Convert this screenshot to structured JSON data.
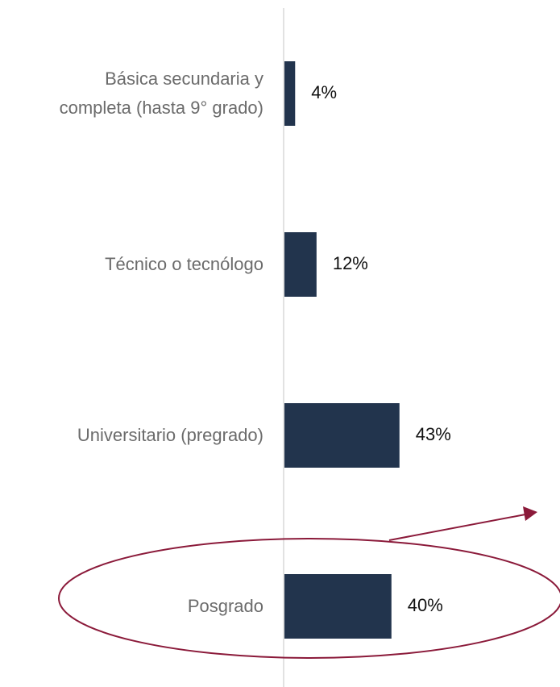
{
  "chart_data": {
    "type": "bar",
    "orientation": "horizontal",
    "categories": [
      "Básica secundaria y completa (hasta 9° grado)",
      "Técnico o tecnólogo",
      "Universitario (pregrado)",
      "Posgrado"
    ],
    "values": [
      4,
      12,
      43,
      40
    ],
    "value_labels": [
      "4%",
      "12%",
      "43%",
      "40%"
    ],
    "color": "#22344d"
  }
}
